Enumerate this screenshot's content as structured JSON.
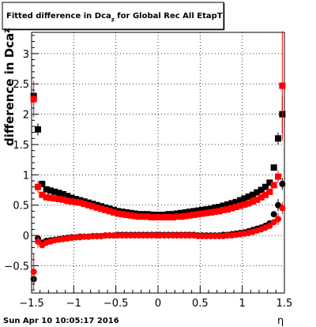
{
  "chart_data": {
    "type": "scatter",
    "title_main": "Fitted difference in Dca",
    "title_sub": "z",
    "title_rest": " for Global Rec All EtapT",
    "xlabel": "η",
    "ylabel_main": "difference in Dca",
    "ylabel_sub": "z",
    "date_stamp": "Sun Apr 10 10:05:17 2016",
    "xlim": [
      -1.5,
      1.5
    ],
    "ylim": [
      -0.95,
      3.35
    ],
    "grid": true,
    "xticks": [
      -1.5,
      -1,
      -0.5,
      0,
      0.5,
      1,
      1.5
    ],
    "xtick_labels": [
      "−1.5",
      "−1",
      "−0.5",
      "0",
      "0.5",
      "1",
      "1.5"
    ],
    "yticks": [
      -0.5,
      0,
      0.5,
      1,
      1.5,
      2,
      2.5,
      3
    ],
    "ytick_labels": [
      "−0.5",
      "0",
      "0.5",
      "1",
      "1.5",
      "2",
      "2.5",
      "3"
    ],
    "colors": {
      "black": "#000000",
      "red": "#ff0000"
    },
    "series": [
      {
        "color": "black",
        "upper": true,
        "points": [
          [
            -1.475,
            2.3,
            0.1
          ],
          [
            -1.425,
            1.75,
            0.1
          ],
          [
            -1.375,
            0.85,
            0.05
          ],
          [
            -1.325,
            0.76,
            0.03
          ],
          [
            -1.275,
            0.74,
            0.02
          ],
          [
            -1.225,
            0.72,
            0
          ],
          [
            -1.175,
            0.7,
            0
          ],
          [
            -1.125,
            0.68,
            0
          ],
          [
            -1.075,
            0.65,
            0
          ],
          [
            -1.025,
            0.62,
            0
          ],
          [
            -0.975,
            0.6,
            0
          ],
          [
            -0.925,
            0.58,
            0
          ],
          [
            -0.875,
            0.56,
            0
          ],
          [
            -0.825,
            0.54,
            0
          ],
          [
            -0.775,
            0.52,
            0
          ],
          [
            -0.725,
            0.5,
            0
          ],
          [
            -0.675,
            0.48,
            0
          ],
          [
            -0.625,
            0.46,
            0
          ],
          [
            -0.575,
            0.44,
            0
          ],
          [
            -0.525,
            0.42,
            0
          ],
          [
            -0.475,
            0.4,
            0
          ],
          [
            -0.425,
            0.39,
            0
          ],
          [
            -0.375,
            0.38,
            0
          ],
          [
            -0.325,
            0.37,
            0
          ],
          [
            -0.275,
            0.36,
            0
          ],
          [
            -0.225,
            0.35,
            0
          ],
          [
            -0.175,
            0.35,
            0
          ],
          [
            -0.125,
            0.35,
            0
          ],
          [
            -0.075,
            0.34,
            0
          ],
          [
            -0.025,
            0.34,
            0
          ],
          [
            0.025,
            0.34,
            0
          ],
          [
            0.075,
            0.34,
            0
          ],
          [
            0.125,
            0.35,
            0
          ],
          [
            0.175,
            0.35,
            0
          ],
          [
            0.225,
            0.36,
            0
          ],
          [
            0.275,
            0.37,
            0
          ],
          [
            0.325,
            0.38,
            0
          ],
          [
            0.375,
            0.39,
            0
          ],
          [
            0.425,
            0.4,
            0
          ],
          [
            0.475,
            0.41,
            0
          ],
          [
            0.525,
            0.42,
            0
          ],
          [
            0.575,
            0.43,
            0
          ],
          [
            0.625,
            0.44,
            0
          ],
          [
            0.675,
            0.46,
            0
          ],
          [
            0.725,
            0.47,
            0
          ],
          [
            0.775,
            0.49,
            0
          ],
          [
            0.825,
            0.51,
            0
          ],
          [
            0.875,
            0.53,
            0
          ],
          [
            0.925,
            0.55,
            0
          ],
          [
            0.975,
            0.58,
            0
          ],
          [
            1.025,
            0.61,
            0
          ],
          [
            1.075,
            0.64,
            0
          ],
          [
            1.125,
            0.67,
            0
          ],
          [
            1.175,
            0.71,
            0
          ],
          [
            1.225,
            0.75,
            0
          ],
          [
            1.275,
            0.8,
            0.02
          ],
          [
            1.325,
            0.87,
            0.03
          ],
          [
            1.375,
            1.12,
            0.05
          ],
          [
            1.425,
            1.6,
            0.1
          ],
          [
            1.475,
            2.0,
            0.3
          ]
        ]
      },
      {
        "color": "red",
        "upper": true,
        "points": [
          [
            -1.475,
            2.25,
            0.3
          ],
          [
            -1.425,
            0.8,
            0.1
          ],
          [
            -1.375,
            0.67,
            0.03
          ],
          [
            -1.325,
            0.63,
            0.02
          ],
          [
            -1.275,
            0.62,
            0
          ],
          [
            -1.225,
            0.61,
            0
          ],
          [
            -1.175,
            0.6,
            0
          ],
          [
            -1.125,
            0.59,
            0
          ],
          [
            -1.075,
            0.57,
            0
          ],
          [
            -1.025,
            0.56,
            0
          ],
          [
            -0.975,
            0.55,
            0
          ],
          [
            -0.925,
            0.54,
            0
          ],
          [
            -0.875,
            0.52,
            0
          ],
          [
            -0.825,
            0.5,
            0
          ],
          [
            -0.775,
            0.48,
            0
          ],
          [
            -0.725,
            0.46,
            0
          ],
          [
            -0.675,
            0.44,
            0
          ],
          [
            -0.625,
            0.42,
            0
          ],
          [
            -0.575,
            0.4,
            0
          ],
          [
            -0.525,
            0.38,
            0
          ],
          [
            -0.475,
            0.36,
            0
          ],
          [
            -0.425,
            0.35,
            0
          ],
          [
            -0.375,
            0.34,
            0
          ],
          [
            -0.325,
            0.33,
            0
          ],
          [
            -0.275,
            0.32,
            0
          ],
          [
            -0.225,
            0.31,
            0
          ],
          [
            -0.175,
            0.31,
            0
          ],
          [
            -0.125,
            0.31,
            0
          ],
          [
            -0.075,
            0.3,
            0
          ],
          [
            -0.025,
            0.3,
            0
          ],
          [
            0.025,
            0.3,
            0
          ],
          [
            0.075,
            0.3,
            0
          ],
          [
            0.125,
            0.3,
            0
          ],
          [
            0.175,
            0.3,
            0
          ],
          [
            0.225,
            0.31,
            0
          ],
          [
            0.275,
            0.31,
            0
          ],
          [
            0.325,
            0.32,
            0
          ],
          [
            0.375,
            0.33,
            0
          ],
          [
            0.425,
            0.34,
            0
          ],
          [
            0.475,
            0.35,
            0
          ],
          [
            0.525,
            0.36,
            0
          ],
          [
            0.575,
            0.37,
            0
          ],
          [
            0.625,
            0.38,
            0
          ],
          [
            0.675,
            0.39,
            0
          ],
          [
            0.725,
            0.4,
            0
          ],
          [
            0.775,
            0.42,
            0
          ],
          [
            0.825,
            0.43,
            0
          ],
          [
            0.875,
            0.45,
            0
          ],
          [
            0.925,
            0.47,
            0
          ],
          [
            0.975,
            0.49,
            0
          ],
          [
            1.025,
            0.51,
            0
          ],
          [
            1.075,
            0.53,
            0
          ],
          [
            1.125,
            0.56,
            0
          ],
          [
            1.175,
            0.59,
            0
          ],
          [
            1.225,
            0.63,
            0
          ],
          [
            1.275,
            0.67,
            0.02
          ],
          [
            1.325,
            0.72,
            0.03
          ],
          [
            1.375,
            0.83,
            0.05
          ],
          [
            1.425,
            0.97,
            0.1
          ],
          [
            1.475,
            2.47,
            0.9
          ]
        ]
      },
      {
        "color": "black",
        "upper": false,
        "points": [
          [
            -1.475,
            -0.72,
            0.1
          ],
          [
            -1.425,
            -0.05,
            0.05
          ],
          [
            -1.375,
            -0.12,
            0.03
          ],
          [
            -1.325,
            -0.09,
            0.02
          ],
          [
            -1.275,
            -0.08,
            0
          ],
          [
            -1.225,
            -0.07,
            0
          ],
          [
            -1.175,
            -0.06,
            0
          ],
          [
            -1.125,
            -0.05,
            0
          ],
          [
            -1.075,
            -0.04,
            0
          ],
          [
            -1.025,
            -0.03,
            0
          ],
          [
            -0.975,
            -0.03,
            0
          ],
          [
            -0.925,
            -0.02,
            0
          ],
          [
            -0.875,
            -0.02,
            0
          ],
          [
            -0.825,
            -0.02,
            0
          ],
          [
            -0.775,
            -0.01,
            0
          ],
          [
            -0.725,
            -0.01,
            0
          ],
          [
            -0.675,
            -0.01,
            0
          ],
          [
            -0.625,
            0.0,
            0
          ],
          [
            -0.575,
            0.0,
            0
          ],
          [
            -0.525,
            0.0,
            0
          ],
          [
            -0.475,
            0.01,
            0
          ],
          [
            -0.425,
            0.01,
            0
          ],
          [
            -0.375,
            0.01,
            0
          ],
          [
            -0.325,
            0.01,
            0
          ],
          [
            -0.275,
            0.01,
            0
          ],
          [
            -0.225,
            0.01,
            0
          ],
          [
            -0.175,
            0.01,
            0
          ],
          [
            -0.125,
            0.01,
            0
          ],
          [
            -0.075,
            0.01,
            0
          ],
          [
            -0.025,
            0.01,
            0
          ],
          [
            0.025,
            0.01,
            0
          ],
          [
            0.075,
            0.01,
            0
          ],
          [
            0.125,
            0.01,
            0
          ],
          [
            0.175,
            0.01,
            0
          ],
          [
            0.225,
            0.01,
            0
          ],
          [
            0.275,
            0.01,
            0
          ],
          [
            0.325,
            0.01,
            0
          ],
          [
            0.375,
            0.01,
            0
          ],
          [
            0.425,
            0.01,
            0
          ],
          [
            0.475,
            0.0,
            0
          ],
          [
            0.525,
            0.0,
            0
          ],
          [
            0.575,
            0.0,
            0
          ],
          [
            0.625,
            0.0,
            0
          ],
          [
            0.675,
            0.0,
            0
          ],
          [
            0.725,
            0.0,
            0
          ],
          [
            0.775,
            0.01,
            0
          ],
          [
            0.825,
            0.01,
            0
          ],
          [
            0.875,
            0.02,
            0
          ],
          [
            0.925,
            0.03,
            0
          ],
          [
            0.975,
            0.04,
            0
          ],
          [
            1.025,
            0.05,
            0
          ],
          [
            1.075,
            0.07,
            0
          ],
          [
            1.125,
            0.09,
            0
          ],
          [
            1.175,
            0.11,
            0
          ],
          [
            1.225,
            0.13,
            0
          ],
          [
            1.275,
            0.16,
            0.02
          ],
          [
            1.325,
            0.2,
            0.03
          ],
          [
            1.375,
            0.35,
            0.05
          ],
          [
            1.425,
            0.5,
            0.1
          ],
          [
            1.475,
            0.85,
            0.1
          ]
        ]
      },
      {
        "color": "red",
        "upper": false,
        "points": [
          [
            -1.475,
            -0.6,
            0.3
          ],
          [
            -1.425,
            -0.1,
            0.1
          ],
          [
            -1.375,
            -0.16,
            0.03
          ],
          [
            -1.325,
            -0.12,
            0.02
          ],
          [
            -1.275,
            -0.1,
            0
          ],
          [
            -1.225,
            -0.08,
            0
          ],
          [
            -1.175,
            -0.07,
            0
          ],
          [
            -1.125,
            -0.06,
            0
          ],
          [
            -1.075,
            -0.05,
            0
          ],
          [
            -1.025,
            -0.04,
            0
          ],
          [
            -0.975,
            -0.03,
            0
          ],
          [
            -0.925,
            -0.03,
            0
          ],
          [
            -0.875,
            -0.02,
            0
          ],
          [
            -0.825,
            -0.02,
            0
          ],
          [
            -0.775,
            -0.01,
            0
          ],
          [
            -0.725,
            -0.01,
            0
          ],
          [
            -0.675,
            -0.01,
            0
          ],
          [
            -0.625,
            0.0,
            0
          ],
          [
            -0.575,
            0.0,
            0
          ],
          [
            -0.525,
            0.0,
            0
          ],
          [
            -0.475,
            0.0,
            0
          ],
          [
            -0.425,
            0.0,
            0
          ],
          [
            -0.375,
            0.0,
            0
          ],
          [
            -0.325,
            0.0,
            0
          ],
          [
            -0.275,
            0.0,
            0
          ],
          [
            -0.225,
            0.0,
            0
          ],
          [
            -0.175,
            0.0,
            0
          ],
          [
            -0.125,
            0.0,
            0
          ],
          [
            -0.075,
            0.0,
            0
          ],
          [
            -0.025,
            0.0,
            0
          ],
          [
            0.025,
            0.0,
            0
          ],
          [
            0.075,
            0.0,
            0
          ],
          [
            0.125,
            0.0,
            0
          ],
          [
            0.175,
            0.0,
            0
          ],
          [
            0.225,
            0.0,
            0
          ],
          [
            0.275,
            0.0,
            0
          ],
          [
            0.325,
            0.0,
            0
          ],
          [
            0.375,
            0.0,
            0
          ],
          [
            0.425,
            0.0,
            0
          ],
          [
            0.475,
            -0.01,
            0
          ],
          [
            0.525,
            -0.01,
            0
          ],
          [
            0.575,
            -0.01,
            0
          ],
          [
            0.625,
            -0.01,
            0
          ],
          [
            0.675,
            -0.01,
            0
          ],
          [
            0.725,
            -0.01,
            0
          ],
          [
            0.775,
            -0.01,
            0
          ],
          [
            0.825,
            0.0,
            0
          ],
          [
            0.875,
            0.0,
            0
          ],
          [
            0.925,
            0.01,
            0
          ],
          [
            0.975,
            0.02,
            0
          ],
          [
            1.025,
            0.03,
            0
          ],
          [
            1.075,
            0.04,
            0
          ],
          [
            1.125,
            0.06,
            0
          ],
          [
            1.175,
            0.08,
            0
          ],
          [
            1.225,
            0.1,
            0
          ],
          [
            1.275,
            0.13,
            0.02
          ],
          [
            1.325,
            0.16,
            0.03
          ],
          [
            1.375,
            0.22,
            0.05
          ],
          [
            1.425,
            0.27,
            0.1
          ],
          [
            1.475,
            0.45,
            0.1
          ]
        ]
      }
    ]
  }
}
